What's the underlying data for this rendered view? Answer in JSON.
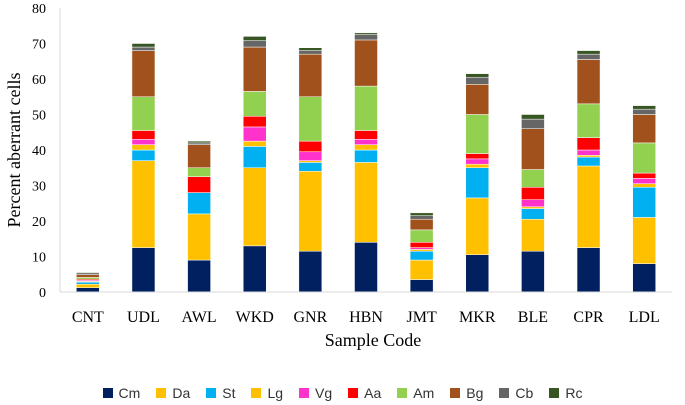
{
  "chart_data": {
    "type": "bar",
    "stacked": true,
    "xlabel": "Sample Code",
    "ylabel": "Percent aberrant cells",
    "ylim": [
      0,
      80
    ],
    "yticks": [
      0,
      10,
      20,
      30,
      40,
      50,
      60,
      70,
      80
    ],
    "grid": false,
    "legend_position": "bottom",
    "categories": [
      "CNT",
      "UDL",
      "AWL",
      "WKD",
      "GNR",
      "HBN",
      "JMT",
      "MKR",
      "BLE",
      "CPR",
      "LDL"
    ],
    "series": [
      {
        "name": "Cm",
        "color": "#002060",
        "values": [
          1.2,
          12.5,
          9.0,
          13.0,
          11.5,
          14.0,
          3.5,
          10.5,
          11.5,
          12.5,
          8.0
        ]
      },
      {
        "name": "Da",
        "color": "#FFC000",
        "values": [
          1.0,
          24.5,
          13.0,
          22.0,
          22.5,
          22.5,
          5.5,
          16.0,
          9.0,
          23.0,
          13.0
        ]
      },
      {
        "name": "St",
        "color": "#00B0F0",
        "values": [
          0.6,
          3.0,
          6.0,
          6.0,
          2.5,
          3.5,
          2.5,
          8.5,
          3.0,
          2.5,
          8.5
        ]
      },
      {
        "name": "Lg",
        "color": "#FFC000",
        "values": [
          0.2,
          1.5,
          0.0,
          1.5,
          0.5,
          1.5,
          0.5,
          1.0,
          0.5,
          0.5,
          1.0
        ]
      },
      {
        "name": "Vg",
        "color": "#FF33CC",
        "values": [
          0.3,
          1.5,
          0.0,
          4.0,
          2.5,
          1.5,
          0.5,
          1.5,
          2.0,
          1.5,
          1.5
        ]
      },
      {
        "name": "Aa",
        "color": "#FF0000",
        "values": [
          0.3,
          2.5,
          4.5,
          3.0,
          3.0,
          2.5,
          1.5,
          1.5,
          3.5,
          3.5,
          1.5
        ]
      },
      {
        "name": "Am",
        "color": "#92D050",
        "values": [
          0.5,
          9.5,
          2.5,
          7.0,
          12.5,
          12.5,
          3.5,
          11.0,
          5.0,
          9.5,
          8.5
        ]
      },
      {
        "name": "Bg",
        "color": "#A0511C",
        "values": [
          0.8,
          13.0,
          6.5,
          12.5,
          12.0,
          13.0,
          3.0,
          8.5,
          11.5,
          12.5,
          8.0
        ]
      },
      {
        "name": "Cb",
        "color": "#666666",
        "values": [
          0.5,
          1.0,
          0.5,
          1.8,
          1.0,
          1.5,
          1.0,
          2.0,
          2.7,
          1.5,
          1.5
        ]
      },
      {
        "name": "Rc",
        "color": "#375623",
        "values": [
          0.2,
          1.0,
          0.5,
          1.2,
          0.8,
          0.5,
          0.8,
          1.0,
          1.3,
          1.0,
          1.0
        ]
      }
    ]
  }
}
